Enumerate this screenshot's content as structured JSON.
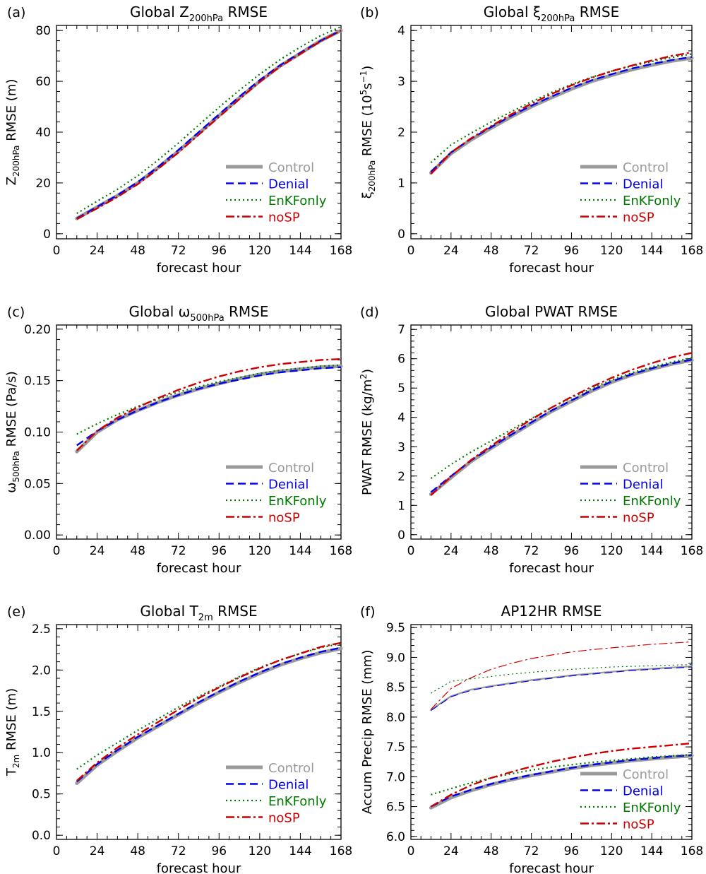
{
  "legend_items": [
    {
      "key": "control",
      "label": "Control",
      "color": "#9a9a9a"
    },
    {
      "key": "denial",
      "label": "Denial",
      "color": "#0000ee"
    },
    {
      "key": "enkf",
      "label": "EnKFonly",
      "color": "#007700"
    },
    {
      "key": "nosp",
      "label": "noSP",
      "color": "#cc0000"
    }
  ],
  "chart_data": [
    {
      "panel": "(a)",
      "type": "line",
      "title": "Global Z200hPa RMSE",
      "title_parts": [
        "Global Z",
        "200hPa",
        " RMSE"
      ],
      "xlabel": "forecast hour",
      "ylabel_parts": [
        "Z",
        "200hPa",
        " RMSE (m)"
      ],
      "xlim": [
        0,
        168
      ],
      "ylim": [
        -2,
        82
      ],
      "xticks": [
        0,
        24,
        48,
        72,
        96,
        120,
        144,
        168
      ],
      "yticks": [
        0,
        20,
        40,
        60,
        80
      ],
      "ytick_labels": [
        "0",
        "20",
        "40",
        "60",
        "80"
      ],
      "x": [
        12,
        24,
        36,
        48,
        60,
        72,
        84,
        96,
        108,
        120,
        132,
        144,
        156,
        168
      ],
      "series": [
        {
          "key": "control",
          "name": "Control",
          "values": [
            6,
            10.5,
            15,
            20,
            26,
            32.5,
            39.5,
            46.5,
            53.5,
            60,
            66,
            71,
            76,
            80
          ]
        },
        {
          "key": "denial",
          "name": "Denial",
          "values": [
            6,
            10.6,
            15.2,
            20.3,
            26.3,
            33,
            40,
            47,
            54,
            60.5,
            66.3,
            71.2,
            76,
            80
          ]
        },
        {
          "key": "enkf",
          "name": "EnKFonly",
          "values": [
            8,
            12.8,
            17.5,
            22.8,
            29,
            35.7,
            42.8,
            49.8,
            56.5,
            62.8,
            68.5,
            73.5,
            78,
            81.5
          ]
        },
        {
          "key": "nosp",
          "name": "noSP",
          "values": [
            5.8,
            10,
            14.5,
            19.5,
            25.5,
            32,
            39,
            46,
            53,
            59.8,
            65.8,
            70.8,
            75.8,
            80
          ]
        }
      ]
    },
    {
      "panel": "(b)",
      "type": "line",
      "title": "Global ξ200hPa RMSE",
      "title_parts": [
        "Global ξ",
        "200hPa",
        " RMSE"
      ],
      "xlabel": "forecast hour",
      "ylabel_parts": [
        "ξ",
        "200hPa",
        " RMSE (10",
        "5",
        "s",
        "−1",
        ")"
      ],
      "xlim": [
        0,
        168
      ],
      "ylim": [
        -0.1,
        4.1
      ],
      "xticks": [
        0,
        24,
        48,
        72,
        96,
        120,
        144,
        168
      ],
      "yticks": [
        0,
        1,
        2,
        3,
        4
      ],
      "ytick_labels": [
        "0",
        "1",
        "2",
        "3",
        "4"
      ],
      "x": [
        12,
        24,
        36,
        48,
        60,
        72,
        84,
        96,
        108,
        120,
        132,
        144,
        156,
        168
      ],
      "series": [
        {
          "key": "control",
          "name": "Control",
          "values": [
            1.2,
            1.58,
            1.85,
            2.08,
            2.3,
            2.5,
            2.68,
            2.85,
            3.0,
            3.12,
            3.23,
            3.32,
            3.4,
            3.46
          ]
        },
        {
          "key": "denial",
          "name": "Denial",
          "values": [
            1.22,
            1.6,
            1.87,
            2.1,
            2.32,
            2.52,
            2.7,
            2.87,
            3.02,
            3.14,
            3.25,
            3.34,
            3.42,
            3.48
          ]
        },
        {
          "key": "enkf",
          "name": "EnKFonly",
          "values": [
            1.4,
            1.75,
            1.98,
            2.2,
            2.4,
            2.6,
            2.78,
            2.94,
            3.08,
            3.2,
            3.3,
            3.39,
            3.47,
            3.54
          ]
        },
        {
          "key": "nosp",
          "name": "noSP",
          "values": [
            1.18,
            1.6,
            1.88,
            2.12,
            2.35,
            2.56,
            2.75,
            2.92,
            3.07,
            3.2,
            3.31,
            3.41,
            3.5,
            3.57
          ]
        }
      ]
    },
    {
      "panel": "(c)",
      "type": "line",
      "title": "Global ω500hPa RMSE",
      "title_parts": [
        "Global ω",
        "500hPa",
        " RMSE"
      ],
      "xlabel": "forecast hour",
      "ylabel_parts": [
        "ω",
        "500hPa",
        " RMSE (Pa/s)"
      ],
      "xlim": [
        0,
        168
      ],
      "ylim": [
        -0.004,
        0.204
      ],
      "xticks": [
        0,
        24,
        48,
        72,
        96,
        120,
        144,
        168
      ],
      "yticks": [
        0,
        0.05,
        0.1,
        0.15,
        0.2
      ],
      "ytick_labels": [
        "0.00",
        "0.05",
        "0.10",
        "0.15",
        "0.20"
      ],
      "x": [
        12,
        24,
        36,
        48,
        60,
        72,
        84,
        96,
        108,
        120,
        132,
        144,
        156,
        168
      ],
      "series": [
        {
          "key": "control",
          "name": "Control",
          "values": [
            0.081,
            0.1,
            0.112,
            0.121,
            0.129,
            0.136,
            0.142,
            0.147,
            0.152,
            0.156,
            0.159,
            0.161,
            0.163,
            0.164
          ]
        },
        {
          "key": "denial",
          "name": "Denial",
          "values": [
            0.087,
            0.101,
            0.112,
            0.121,
            0.129,
            0.136,
            0.142,
            0.147,
            0.151,
            0.155,
            0.158,
            0.16,
            0.162,
            0.163
          ]
        },
        {
          "key": "enkf",
          "name": "EnKFonly",
          "values": [
            0.098,
            0.108,
            0.117,
            0.125,
            0.132,
            0.139,
            0.144,
            0.149,
            0.153,
            0.157,
            0.16,
            0.162,
            0.164,
            0.165
          ]
        },
        {
          "key": "nosp",
          "name": "noSP",
          "values": [
            0.082,
            0.101,
            0.114,
            0.124,
            0.133,
            0.141,
            0.148,
            0.154,
            0.159,
            0.163,
            0.166,
            0.168,
            0.17,
            0.171
          ]
        }
      ]
    },
    {
      "panel": "(d)",
      "type": "line",
      "title": "Global PWAT RMSE",
      "title_parts": [
        "Global PWAT RMSE",
        "",
        ""
      ],
      "xlabel": "forecast hour",
      "ylabel_parts": [
        "PWAT RMSE (kg/m",
        "2",
        ")"
      ],
      "xlim": [
        0,
        168
      ],
      "ylim": [
        -0.15,
        7.15
      ],
      "xticks": [
        0,
        24,
        48,
        72,
        96,
        120,
        144,
        168
      ],
      "yticks": [
        0,
        1,
        2,
        3,
        4,
        5,
        6,
        7
      ],
      "ytick_labels": [
        "0",
        "1",
        "2",
        "3",
        "4",
        "5",
        "6",
        "7"
      ],
      "x": [
        12,
        24,
        36,
        48,
        60,
        72,
        84,
        96,
        108,
        120,
        132,
        144,
        156,
        168
      ],
      "series": [
        {
          "key": "control",
          "name": "Control",
          "values": [
            1.38,
            1.95,
            2.5,
            2.95,
            3.38,
            3.8,
            4.2,
            4.55,
            4.9,
            5.2,
            5.45,
            5.65,
            5.82,
            5.95
          ]
        },
        {
          "key": "denial",
          "name": "Denial",
          "values": [
            1.45,
            2.0,
            2.53,
            2.98,
            3.41,
            3.83,
            4.23,
            4.58,
            4.92,
            5.22,
            5.47,
            5.67,
            5.84,
            5.97
          ]
        },
        {
          "key": "enkf",
          "name": "EnKFonly",
          "values": [
            1.92,
            2.4,
            2.82,
            3.2,
            3.58,
            3.96,
            4.33,
            4.67,
            4.99,
            5.28,
            5.52,
            5.72,
            5.89,
            6.03
          ]
        },
        {
          "key": "nosp",
          "name": "noSP",
          "values": [
            1.35,
            1.98,
            2.55,
            3.03,
            3.5,
            3.93,
            4.33,
            4.7,
            5.04,
            5.35,
            5.62,
            5.85,
            6.05,
            6.2
          ]
        }
      ]
    },
    {
      "panel": "(e)",
      "type": "line",
      "title": "Global T2m RMSE",
      "title_parts": [
        "Global T",
        "2m",
        " RMSE"
      ],
      "xlabel": "forecast hour",
      "ylabel_parts": [
        "T",
        "2m",
        " RMSE (m)"
      ],
      "xlim": [
        0,
        168
      ],
      "ylim": [
        -0.05,
        2.55
      ],
      "xticks": [
        0,
        24,
        48,
        72,
        96,
        120,
        144,
        168
      ],
      "yticks": [
        0,
        0.5,
        1,
        1.5,
        2,
        2.5
      ],
      "ytick_labels": [
        "0.0",
        "0.5",
        "1.0",
        "1.5",
        "2.0",
        "2.5"
      ],
      "x": [
        12,
        24,
        36,
        48,
        60,
        72,
        84,
        96,
        108,
        120,
        132,
        144,
        156,
        168
      ],
      "series": [
        {
          "key": "control",
          "name": "Control",
          "values": [
            0.63,
            0.85,
            1.02,
            1.18,
            1.32,
            1.46,
            1.6,
            1.73,
            1.85,
            1.96,
            2.06,
            2.14,
            2.21,
            2.26
          ]
        },
        {
          "key": "denial",
          "name": "Denial",
          "values": [
            0.65,
            0.86,
            1.03,
            1.19,
            1.33,
            1.47,
            1.61,
            1.74,
            1.86,
            1.97,
            2.07,
            2.15,
            2.22,
            2.27
          ]
        },
        {
          "key": "enkf",
          "name": "EnKFonly",
          "values": [
            0.8,
            0.97,
            1.12,
            1.27,
            1.41,
            1.55,
            1.68,
            1.8,
            1.92,
            2.03,
            2.12,
            2.2,
            2.27,
            2.32
          ]
        },
        {
          "key": "nosp",
          "name": "noSP",
          "values": [
            0.66,
            0.88,
            1.06,
            1.22,
            1.37,
            1.52,
            1.66,
            1.79,
            1.91,
            2.02,
            2.12,
            2.2,
            2.28,
            2.33
          ]
        }
      ]
    },
    {
      "panel": "(f)",
      "type": "line",
      "title": "AP12HR RMSE",
      "title_parts": [
        "AP12HR RMSE",
        "",
        ""
      ],
      "xlabel": "forecast hour",
      "ylabel_parts": [
        "Accum Precip RMSE (mm)",
        "",
        ""
      ],
      "xlim": [
        0,
        168
      ],
      "ylim": [
        5.95,
        9.55
      ],
      "xticks": [
        0,
        24,
        48,
        72,
        96,
        120,
        144,
        168
      ],
      "yticks": [
        6,
        6.5,
        7,
        7.5,
        8,
        8.5,
        9,
        9.5
      ],
      "ytick_labels": [
        "6.0",
        "6.5",
        "7.0",
        "7.5",
        "8.0",
        "8.5",
        "9.0",
        "9.5"
      ],
      "x": [
        12,
        24,
        36,
        48,
        60,
        72,
        84,
        96,
        108,
        120,
        132,
        144,
        156,
        168
      ],
      "series": [
        {
          "key": "control",
          "name": "Control",
          "values": [
            6.48,
            6.65,
            6.77,
            6.87,
            6.95,
            7.02,
            7.08,
            7.14,
            7.19,
            7.23,
            7.27,
            7.3,
            7.33,
            7.35
          ]
        },
        {
          "key": "denial",
          "name": "Denial",
          "values": [
            6.5,
            6.67,
            6.78,
            6.88,
            6.96,
            7.03,
            7.09,
            7.15,
            7.2,
            7.24,
            7.28,
            7.31,
            7.34,
            7.36
          ]
        },
        {
          "key": "enkf",
          "name": "EnKFonly",
          "values": [
            6.7,
            6.8,
            6.9,
            6.98,
            7.05,
            7.11,
            7.16,
            7.2,
            7.24,
            7.27,
            7.3,
            7.33,
            7.35,
            7.37
          ]
        },
        {
          "key": "nosp",
          "name": "noSP",
          "values": [
            6.5,
            6.7,
            6.86,
            6.98,
            7.08,
            7.17,
            7.25,
            7.32,
            7.38,
            7.43,
            7.47,
            7.5,
            7.53,
            7.56
          ]
        }
      ],
      "thin_series": [
        {
          "key": "control",
          "name": "Control",
          "values": [
            8.12,
            8.35,
            8.46,
            8.52,
            8.57,
            8.62,
            8.66,
            8.7,
            8.73,
            8.76,
            8.79,
            8.81,
            8.83,
            8.85
          ]
        },
        {
          "key": "denial",
          "name": "Denial",
          "values": [
            8.11,
            8.34,
            8.45,
            8.51,
            8.56,
            8.61,
            8.65,
            8.69,
            8.72,
            8.75,
            8.78,
            8.8,
            8.82,
            8.84
          ]
        },
        {
          "key": "enkf",
          "name": "EnKFonly",
          "values": [
            8.4,
            8.6,
            8.64,
            8.68,
            8.72,
            8.75,
            8.78,
            8.8,
            8.82,
            8.84,
            8.85,
            8.86,
            8.87,
            8.88
          ]
        },
        {
          "key": "nosp",
          "name": "noSP",
          "values": [
            8.13,
            8.48,
            8.66,
            8.8,
            8.9,
            8.98,
            9.04,
            9.09,
            9.13,
            9.16,
            9.19,
            9.22,
            9.24,
            9.26
          ]
        }
      ]
    }
  ]
}
